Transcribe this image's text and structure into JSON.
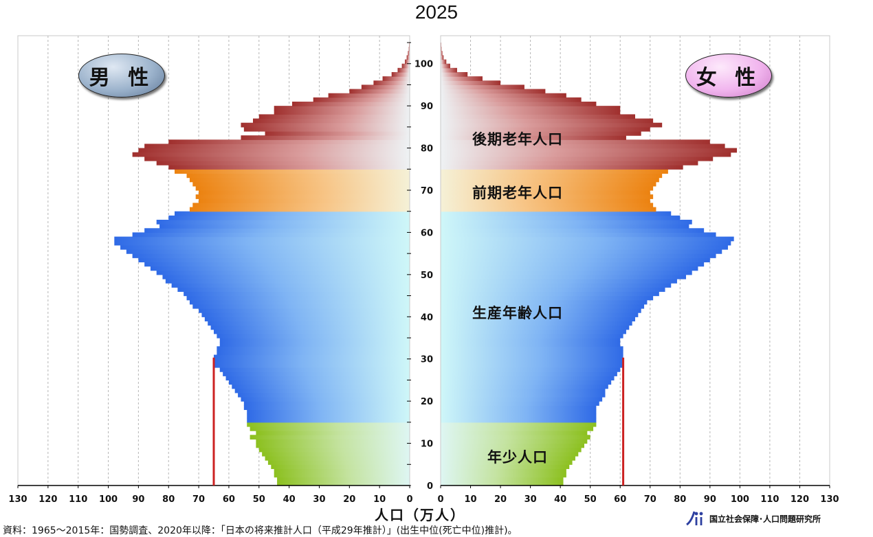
{
  "title": "2025",
  "badges": {
    "male": "男 性",
    "female": "女 性"
  },
  "group_labels": {
    "late_elderly": "後期老年人口",
    "early_elderly": "前期老年人口",
    "working_age": "生産年齢人口",
    "young": "年少人口"
  },
  "source_note": "資料：1965～2015年：国勢調査、2020年以降：「日本の将来推計人口（平成29年推計）」(出生中位(死亡中位)推計)。",
  "organization": "国立社会保障･人口問題研究所",
  "chart_data": {
    "type": "bar",
    "orientation": "horizontal-pyramid",
    "title": "2025",
    "xlabel": "人口（万人）",
    "xlim": [
      0,
      130
    ],
    "ylim": [
      0,
      105
    ],
    "x_ticks": [
      "0",
      "10",
      "20",
      "30",
      "40",
      "50",
      "60",
      "70",
      "80",
      "90",
      "100",
      "110",
      "120",
      "130"
    ],
    "y_ticks": [
      "0",
      "10",
      "20",
      "30",
      "40",
      "50",
      "60",
      "70",
      "80",
      "90",
      "100"
    ],
    "grid": true,
    "ages": [
      0,
      1,
      2,
      3,
      4,
      5,
      6,
      7,
      8,
      9,
      10,
      11,
      12,
      13,
      14,
      15,
      16,
      17,
      18,
      19,
      20,
      21,
      22,
      23,
      24,
      25,
      26,
      27,
      28,
      29,
      30,
      31,
      32,
      33,
      34,
      35,
      36,
      37,
      38,
      39,
      40,
      41,
      42,
      43,
      44,
      45,
      46,
      47,
      48,
      49,
      50,
      51,
      52,
      53,
      54,
      55,
      56,
      57,
      58,
      59,
      60,
      61,
      62,
      63,
      64,
      65,
      66,
      67,
      68,
      69,
      70,
      71,
      72,
      73,
      74,
      75,
      76,
      77,
      78,
      79,
      80,
      81,
      82,
      83,
      84,
      85,
      86,
      87,
      88,
      89,
      90,
      91,
      92,
      93,
      94,
      95,
      96,
      97,
      98,
      99,
      100,
      101,
      102,
      103,
      104,
      105
    ],
    "series": [
      {
        "name": "男 性",
        "values": [
          44,
          44,
          45,
          45,
          46,
          47,
          48,
          49,
          50,
          51,
          51,
          53,
          51,
          53,
          54,
          54,
          54,
          54,
          55,
          55,
          56,
          57,
          58,
          59,
          60,
          61,
          62,
          63,
          65,
          65,
          65,
          64,
          64,
          63,
          63,
          64,
          65,
          66,
          67,
          68,
          69,
          70,
          72,
          73,
          74,
          75,
          77,
          79,
          81,
          82,
          84,
          86,
          88,
          90,
          92,
          94,
          96,
          98,
          98,
          92,
          88,
          83,
          84,
          80,
          78,
          73,
          72,
          70,
          71,
          70,
          71,
          72,
          73,
          74,
          78,
          80,
          84,
          88,
          92,
          90,
          88,
          80,
          56,
          48,
          55,
          56,
          52,
          50,
          45,
          45,
          39,
          32,
          27,
          20,
          16,
          12,
          9,
          6,
          4,
          2.6,
          1.6,
          1,
          0.6,
          0.3,
          0.2,
          0.1
        ],
        "color_young": "#9cc92b",
        "color_working": "#3f78eb",
        "color_early": "#f08a18",
        "color_late": "#a93a3a"
      },
      {
        "name": "女 性",
        "values": [
          41,
          41,
          42,
          42,
          43,
          44,
          45,
          46,
          47,
          48,
          49,
          50,
          49,
          51,
          52,
          52,
          52,
          52,
          52,
          53,
          54,
          55,
          55,
          56,
          57,
          58,
          59,
          60,
          61,
          61,
          61,
          61,
          61,
          60,
          60,
          61,
          62,
          63,
          64,
          65,
          66,
          67,
          68,
          69,
          71,
          73,
          75,
          77,
          79,
          82,
          84,
          86,
          88,
          90,
          92,
          94,
          96,
          97,
          98,
          92,
          88,
          83,
          84,
          80,
          77,
          72,
          71,
          70,
          71,
          70,
          71,
          72,
          73,
          74,
          76,
          81,
          86,
          91,
          97,
          99,
          95,
          90,
          62,
          67,
          70,
          74,
          71,
          65,
          60,
          60,
          52,
          47,
          42,
          35,
          28,
          20,
          14,
          9,
          5.5,
          3.2,
          1.9,
          1,
          0.6,
          0.3,
          0.2,
          0.1
        ],
        "color_young": "#9cc92b",
        "color_working": "#3f78eb",
        "color_early": "#f08a18",
        "color_late": "#a93a3a"
      }
    ],
    "annotations": [
      {
        "side": "male",
        "type": "reference-line",
        "value": 65,
        "from_age": 0,
        "to_age": 30,
        "color": "#cc2222"
      },
      {
        "side": "female",
        "type": "reference-line",
        "value": 61,
        "from_age": 0,
        "to_age": 30,
        "color": "#cc2222"
      }
    ]
  }
}
